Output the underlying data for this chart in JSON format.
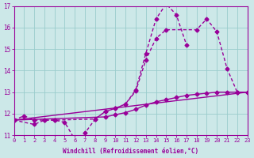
{
  "xlabel": "Windchill (Refroidissement éolien,°C)",
  "xlim": [
    0,
    23
  ],
  "ylim": [
    11,
    17
  ],
  "yticks": [
    11,
    12,
    13,
    14,
    15,
    16,
    17
  ],
  "xticks": [
    0,
    1,
    2,
    3,
    4,
    5,
    6,
    7,
    8,
    9,
    10,
    11,
    12,
    13,
    14,
    15,
    16,
    17,
    18,
    19,
    20,
    21,
    22,
    23
  ],
  "bg_color": "#cce8e8",
  "line_color": "#990099",
  "grid_color": "#99cccc",
  "line1_x": [
    0,
    1,
    2,
    3,
    4,
    5,
    6,
    7,
    8,
    9,
    10,
    11,
    12,
    13,
    14,
    15,
    16,
    17
  ],
  "line1_y": [
    11.7,
    11.9,
    11.7,
    11.7,
    11.7,
    11.6,
    10.8,
    11.1,
    11.75,
    12.1,
    12.25,
    12.45,
    13.1,
    14.8,
    16.4,
    17.1,
    16.6,
    15.2
  ],
  "line2_x": [
    0,
    2,
    3,
    4,
    8,
    9,
    10,
    11,
    12,
    13,
    14,
    15,
    18,
    19,
    20,
    21,
    22
  ],
  "line2_y": [
    11.7,
    11.5,
    11.7,
    11.7,
    11.75,
    12.1,
    12.25,
    12.45,
    13.05,
    14.5,
    15.5,
    15.9,
    15.9,
    16.4,
    15.8,
    14.1,
    13.0
  ],
  "line3_x": [
    0,
    23
  ],
  "line3_y": [
    11.7,
    13.0
  ],
  "line4_x": [
    0,
    9,
    10,
    11,
    12,
    13,
    14,
    15,
    16,
    17,
    18,
    19,
    20,
    21,
    22,
    23
  ],
  "line4_y": [
    11.7,
    11.85,
    11.95,
    12.05,
    12.2,
    12.4,
    12.55,
    12.65,
    12.75,
    12.85,
    12.9,
    12.95,
    13.0,
    13.0,
    13.0,
    13.0
  ],
  "marker": "D",
  "marker_size": 2.5,
  "line_width": 1.0
}
